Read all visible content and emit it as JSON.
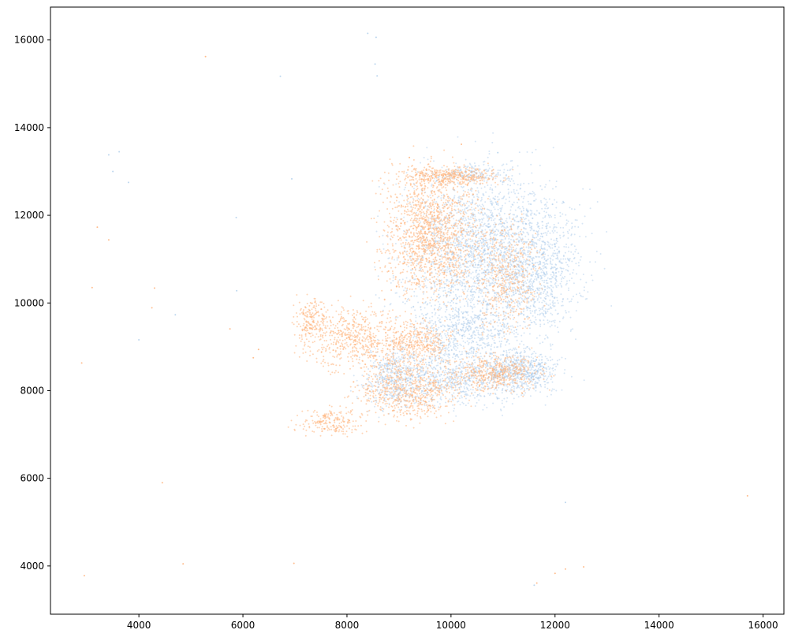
{
  "chart_data": {
    "type": "scatter",
    "title": "",
    "xlabel": "",
    "ylabel": "",
    "xlim": [
      2300,
      16400
    ],
    "ylim": [
      2900,
      16750
    ],
    "xticks": [
      4000,
      6000,
      8000,
      10000,
      12000,
      14000,
      16000
    ],
    "yticks": [
      4000,
      6000,
      8000,
      10000,
      12000,
      14000,
      16000
    ],
    "xtick_labels": [
      "4000",
      "6000",
      "8000",
      "10000",
      "12000",
      "14000",
      "16000"
    ],
    "ytick_labels": [
      "4000",
      "6000",
      "8000",
      "10000",
      "12000",
      "14000",
      "16000"
    ],
    "grid": false,
    "legend": "none",
    "series": [
      {
        "color": "#a6c8e8",
        "opacity": 0.45,
        "clusters": [
          {
            "cx": 10700,
            "cy": 11100,
            "rx": 1600,
            "ry": 1900,
            "n": 2600
          },
          {
            "cx": 11700,
            "cy": 10800,
            "rx": 750,
            "ry": 1300,
            "n": 500
          },
          {
            "cx": 11400,
            "cy": 8450,
            "rx": 650,
            "ry": 500,
            "n": 550
          },
          {
            "cx": 10200,
            "cy": 8300,
            "rx": 1300,
            "ry": 650,
            "n": 800
          },
          {
            "cx": 8900,
            "cy": 8300,
            "rx": 600,
            "ry": 700,
            "n": 450
          },
          {
            "cx": 10300,
            "cy": 9300,
            "rx": 900,
            "ry": 600,
            "n": 450
          },
          {
            "cx": 10400,
            "cy": 12950,
            "rx": 700,
            "ry": 200,
            "n": 150
          }
        ],
        "outliers": [
          [
            3800,
            12750
          ],
          [
            3500,
            13000
          ],
          [
            3620,
            13450
          ],
          [
            3420,
            13380
          ],
          [
            5870,
            11950
          ],
          [
            5880,
            10280
          ],
          [
            4700,
            9730
          ],
          [
            4000,
            9160
          ],
          [
            8400,
            16150
          ],
          [
            8560,
            16060
          ],
          [
            8540,
            15450
          ],
          [
            8580,
            15180
          ],
          [
            6940,
            12830
          ],
          [
            10900,
            13430
          ],
          [
            6720,
            15170
          ],
          [
            12200,
            5450
          ],
          [
            11600,
            3560
          ]
        ]
      },
      {
        "color": "#ffb27a",
        "opacity": 0.55,
        "clusters": [
          {
            "cx": 9600,
            "cy": 11600,
            "rx": 900,
            "ry": 1400,
            "n": 1400
          },
          {
            "cx": 10000,
            "cy": 12900,
            "rx": 900,
            "ry": 220,
            "n": 400
          },
          {
            "cx": 8200,
            "cy": 9200,
            "rx": 900,
            "ry": 700,
            "n": 600
          },
          {
            "cx": 9200,
            "cy": 8000,
            "rx": 1000,
            "ry": 650,
            "n": 650
          },
          {
            "cx": 9400,
            "cy": 9100,
            "rx": 600,
            "ry": 500,
            "n": 350
          },
          {
            "cx": 11100,
            "cy": 10600,
            "rx": 600,
            "ry": 1300,
            "n": 450
          },
          {
            "cx": 10900,
            "cy": 8400,
            "rx": 800,
            "ry": 400,
            "n": 450
          },
          {
            "cx": 7700,
            "cy": 7300,
            "rx": 600,
            "ry": 300,
            "n": 200
          },
          {
            "cx": 7300,
            "cy": 9600,
            "rx": 300,
            "ry": 500,
            "n": 180
          }
        ],
        "outliers": [
          [
            5280,
            15620
          ],
          [
            3200,
            11730
          ],
          [
            3420,
            11440
          ],
          [
            3100,
            10350
          ],
          [
            4300,
            10340
          ],
          [
            4250,
            9890
          ],
          [
            5750,
            9410
          ],
          [
            6300,
            8940
          ],
          [
            6200,
            8750
          ],
          [
            2900,
            8630
          ],
          [
            4450,
            5900
          ],
          [
            4850,
            4050
          ],
          [
            2950,
            3780
          ],
          [
            6980,
            4060
          ],
          [
            12550,
            3980
          ],
          [
            12200,
            3930
          ],
          [
            12000,
            3830
          ],
          [
            15700,
            5600
          ],
          [
            11650,
            3610
          ],
          [
            10200,
            13620
          ],
          [
            9200,
            13320
          ]
        ]
      }
    ]
  }
}
